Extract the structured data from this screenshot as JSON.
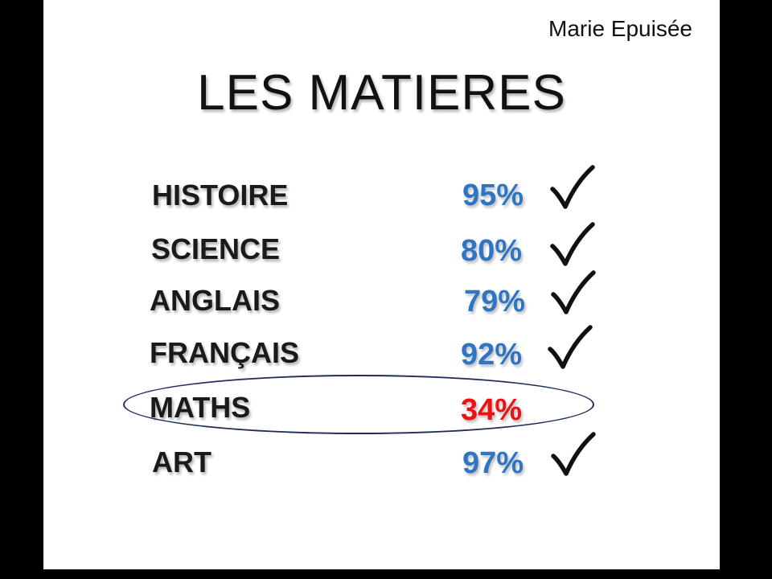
{
  "author": "Marie Epuisée",
  "title": "LES MATIERES",
  "colors": {
    "pass": "#2e75c4",
    "fail": "#ee1111",
    "oval": "#1f2d5a"
  },
  "subjects": [
    {
      "name": "HISTOIRE",
      "score": "95%",
      "status": "pass",
      "checked": true
    },
    {
      "name": "SCIENCE",
      "score": "80%",
      "status": "pass",
      "checked": true
    },
    {
      "name": "ANGLAIS",
      "score": "79%",
      "status": "pass",
      "checked": true
    },
    {
      "name": "FRANÇAIS",
      "score": "92%",
      "status": "pass",
      "checked": true
    },
    {
      "name": "MATHS",
      "score": "34%",
      "status": "fail",
      "checked": false,
      "circled": true
    },
    {
      "name": "ART",
      "score": "97%",
      "status": "pass",
      "checked": true
    }
  ]
}
